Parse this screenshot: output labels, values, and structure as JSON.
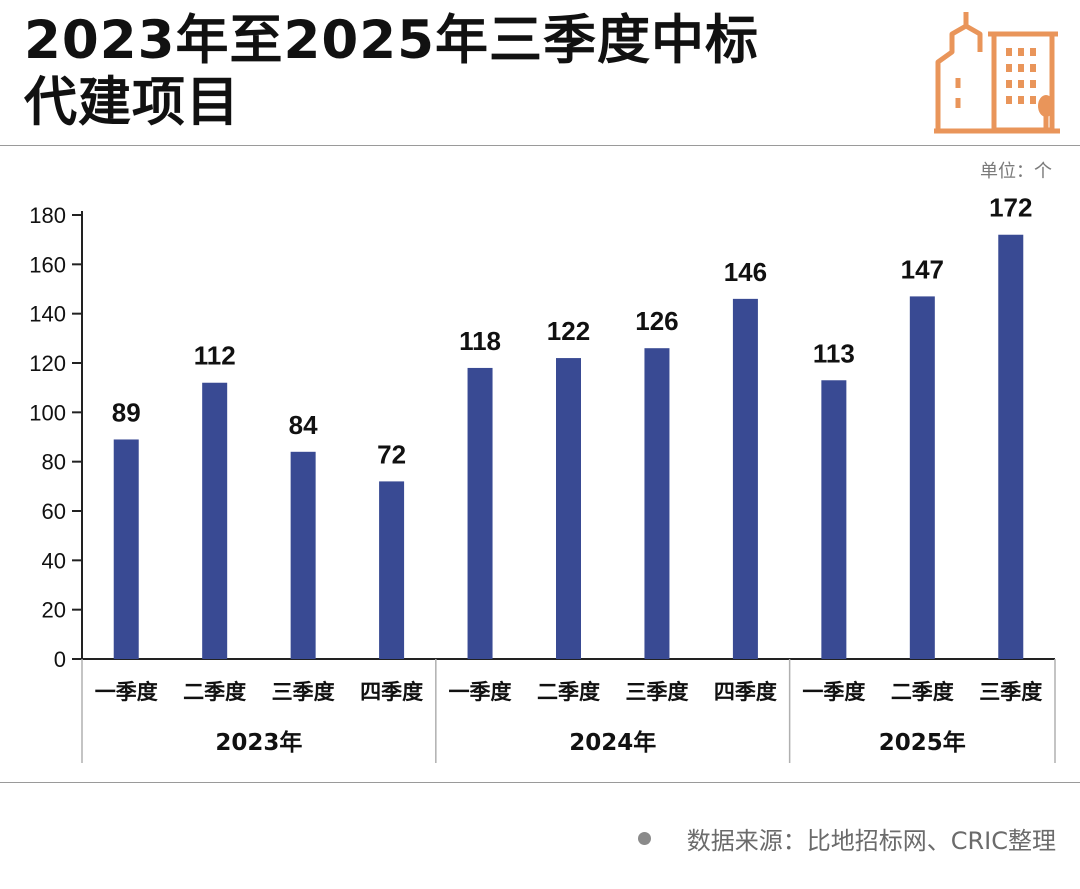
{
  "header": {
    "title_line1": "2023年至2025年三季度中标",
    "title_line2": "代建项目"
  },
  "unit_label": "单位：个",
  "source_label": "数据来源：比地招标网、CRIC整理",
  "colors": {
    "bar": "#394a93",
    "logo": "#e9955a",
    "axis": "#222222",
    "divider": "#b0b0b0"
  },
  "chart_data": {
    "type": "bar",
    "title": "2023年至2025年三季度中标代建项目",
    "ylabel": "单位：个",
    "xlabel": "",
    "ylim": [
      0,
      180
    ],
    "yticks": [
      0,
      20,
      40,
      60,
      80,
      100,
      120,
      140,
      160,
      180
    ],
    "grid": false,
    "categories": [
      {
        "quarter": "一季度",
        "year": "2023年"
      },
      {
        "quarter": "二季度",
        "year": "2023年"
      },
      {
        "quarter": "三季度",
        "year": "2023年"
      },
      {
        "quarter": "四季度",
        "year": "2023年"
      },
      {
        "quarter": "一季度",
        "year": "2024年"
      },
      {
        "quarter": "二季度",
        "year": "2024年"
      },
      {
        "quarter": "三季度",
        "year": "2024年"
      },
      {
        "quarter": "四季度",
        "year": "2024年"
      },
      {
        "quarter": "一季度",
        "year": "2025年"
      },
      {
        "quarter": "二季度",
        "year": "2025年"
      },
      {
        "quarter": "三季度",
        "year": "2025年"
      }
    ],
    "groups": [
      "2023年",
      "2024年",
      "2025年"
    ],
    "values": [
      89,
      112,
      84,
      72,
      118,
      122,
      126,
      146,
      113,
      147,
      172
    ]
  }
}
